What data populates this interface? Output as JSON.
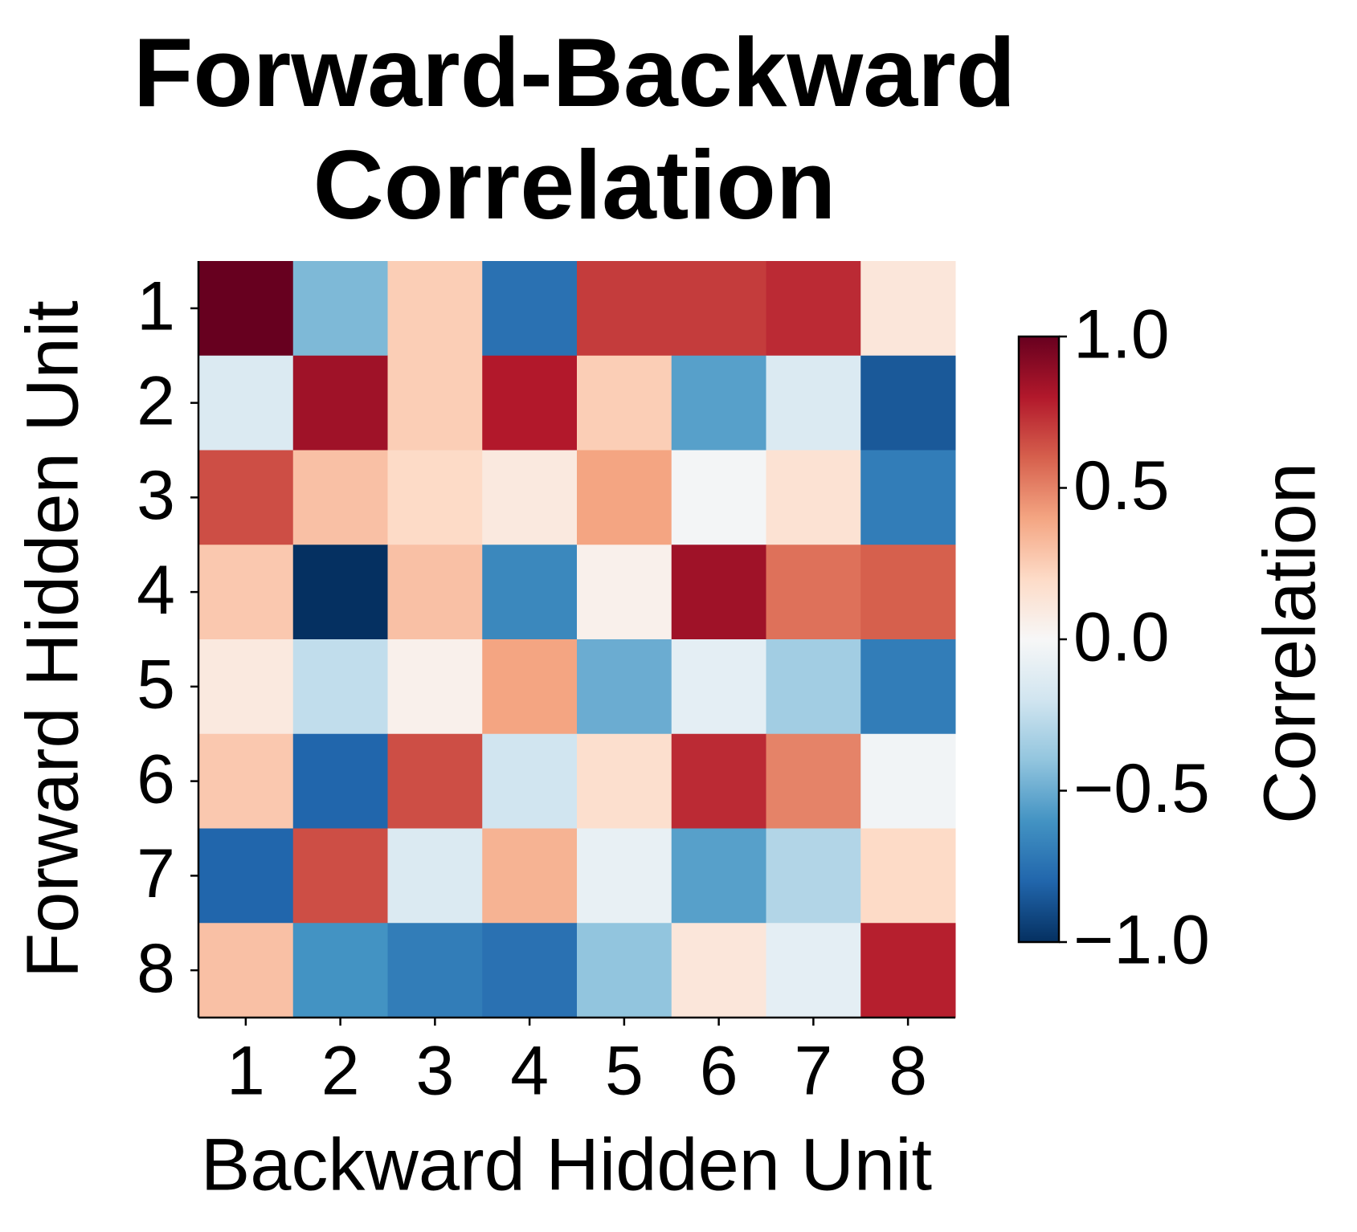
{
  "chart_data": {
    "type": "heatmap",
    "title": "Forward-Backward Correlation",
    "x_label": "Backward Hidden Unit",
    "y_label": "Forward Hidden Unit",
    "x_categories": [
      "1",
      "2",
      "3",
      "4",
      "5",
      "6",
      "7",
      "8"
    ],
    "y_categories": [
      "1",
      "2",
      "3",
      "4",
      "5",
      "6",
      "7",
      "8"
    ],
    "z": [
      [
        1.0,
        -0.45,
        0.25,
        -0.75,
        0.7,
        0.7,
        0.75,
        0.12
      ],
      [
        -0.15,
        0.85,
        0.25,
        0.8,
        0.25,
        -0.55,
        -0.15,
        -0.85
      ],
      [
        0.65,
        0.3,
        0.2,
        0.1,
        0.4,
        -0.02,
        0.15,
        -0.7
      ],
      [
        0.27,
        -1.0,
        0.3,
        -0.65,
        0.05,
        0.85,
        0.55,
        0.6
      ],
      [
        0.1,
        -0.25,
        0.05,
        0.4,
        -0.5,
        -0.1,
        -0.35,
        -0.7
      ],
      [
        0.27,
        -0.8,
        0.65,
        -0.2,
        0.17,
        0.75,
        0.5,
        -0.03
      ],
      [
        -0.8,
        0.65,
        -0.15,
        0.35,
        -0.08,
        -0.55,
        -0.3,
        0.2
      ],
      [
        0.3,
        -0.6,
        -0.7,
        -0.75,
        -0.4,
        0.12,
        -0.1,
        0.78
      ]
    ],
    "colormap": [
      "#053061",
      "#2166ac",
      "#4393c3",
      "#92c5de",
      "#d1e5f0",
      "#f7f7f7",
      "#fddbc7",
      "#f4a582",
      "#d6604d",
      "#b2182b",
      "#67001f"
    ],
    "colorbar_label": "Correlation",
    "clim": [
      -1.0,
      1.0
    ],
    "colorbar_ticks": [
      {
        "value": -1.0,
        "label": "−1.0"
      },
      {
        "value": -0.5,
        "label": "−0.5"
      },
      {
        "value": 0.0,
        "label": "0.0"
      },
      0.5,
      {
        "value": 1.0,
        "label": "1.0"
      }
    ]
  }
}
